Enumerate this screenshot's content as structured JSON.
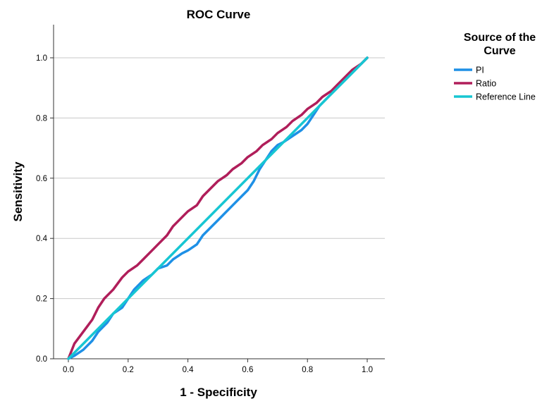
{
  "chart_data": {
    "type": "line",
    "title": "ROC Curve",
    "xlabel": "1 - Specificity",
    "ylabel": "Sensitivity",
    "xlim": [
      0,
      1
    ],
    "ylim": [
      0,
      1.1
    ],
    "xticks": [
      "0.0",
      "0.2",
      "0.4",
      "0.6",
      "0.8",
      "1.0"
    ],
    "yticks": [
      "0.0",
      "0.2",
      "0.4",
      "0.6",
      "0.8",
      "1.0"
    ],
    "grid": "horizontal",
    "legend": {
      "title_line1": "Source of the",
      "title_line2": "Curve",
      "position": "right"
    },
    "series": [
      {
        "name": "PI",
        "color": "#1e90e6",
        "x": [
          0,
          0.02,
          0.05,
          0.08,
          0.1,
          0.13,
          0.15,
          0.18,
          0.2,
          0.22,
          0.25,
          0.28,
          0.3,
          0.33,
          0.35,
          0.38,
          0.4,
          0.43,
          0.45,
          0.48,
          0.5,
          0.52,
          0.55,
          0.58,
          0.6,
          0.62,
          0.64,
          0.66,
          0.68,
          0.7,
          0.72,
          0.75,
          0.78,
          0.8,
          0.82,
          0.84,
          0.86,
          0.88,
          0.9,
          0.92,
          0.94,
          0.96,
          0.98,
          1.0
        ],
        "y": [
          0,
          0.01,
          0.03,
          0.06,
          0.09,
          0.12,
          0.15,
          0.17,
          0.2,
          0.23,
          0.26,
          0.28,
          0.3,
          0.31,
          0.33,
          0.35,
          0.36,
          0.38,
          0.41,
          0.44,
          0.46,
          0.48,
          0.51,
          0.54,
          0.56,
          0.59,
          0.63,
          0.66,
          0.69,
          0.71,
          0.72,
          0.74,
          0.76,
          0.78,
          0.81,
          0.84,
          0.86,
          0.88,
          0.9,
          0.92,
          0.94,
          0.96,
          0.98,
          1.0
        ]
      },
      {
        "name": "Ratio",
        "color": "#b01e5a",
        "x": [
          0,
          0.02,
          0.05,
          0.08,
          0.1,
          0.12,
          0.15,
          0.18,
          0.2,
          0.23,
          0.25,
          0.28,
          0.3,
          0.33,
          0.35,
          0.38,
          0.4,
          0.43,
          0.45,
          0.48,
          0.5,
          0.53,
          0.55,
          0.58,
          0.6,
          0.63,
          0.65,
          0.68,
          0.7,
          0.73,
          0.75,
          0.78,
          0.8,
          0.83,
          0.85,
          0.88,
          0.9,
          0.93,
          0.95,
          0.98,
          1.0
        ],
        "y": [
          0,
          0.05,
          0.09,
          0.13,
          0.17,
          0.2,
          0.23,
          0.27,
          0.29,
          0.31,
          0.33,
          0.36,
          0.38,
          0.41,
          0.44,
          0.47,
          0.49,
          0.51,
          0.54,
          0.57,
          0.59,
          0.61,
          0.63,
          0.65,
          0.67,
          0.69,
          0.71,
          0.73,
          0.75,
          0.77,
          0.79,
          0.81,
          0.83,
          0.85,
          0.87,
          0.89,
          0.91,
          0.94,
          0.96,
          0.98,
          1.0
        ]
      },
      {
        "name": "Reference Line",
        "color": "#17c6d2",
        "x": [
          0,
          1
        ],
        "y": [
          0,
          1
        ]
      }
    ]
  }
}
